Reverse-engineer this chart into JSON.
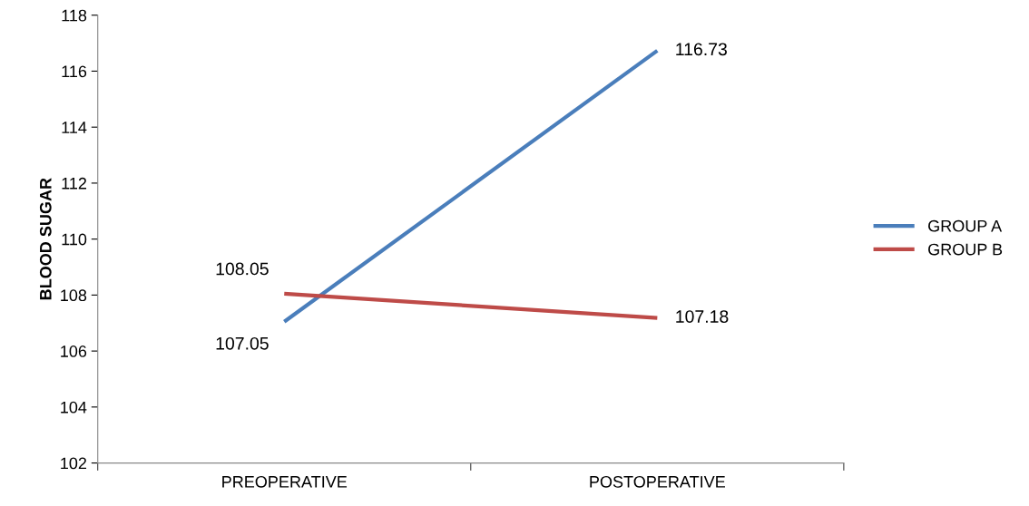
{
  "chart_data": {
    "type": "line",
    "ylabel": "BLOOD SUGAR",
    "categories": [
      "PREOPERATIVE",
      "POSTOPERATIVE"
    ],
    "series": [
      {
        "name": "GROUP A",
        "color": "#4a7ebb",
        "values": [
          107.05,
          116.73
        ]
      },
      {
        "name": "GROUP B",
        "color": "#be4b48",
        "values": [
          108.05,
          107.18
        ]
      }
    ],
    "ylim": [
      102,
      118
    ],
    "yticks": [
      102,
      104,
      106,
      108,
      110,
      112,
      114,
      116,
      118
    ],
    "grid": false,
    "legend": "right",
    "data_labels": true,
    "marker": "none",
    "line_style": "solid"
  }
}
